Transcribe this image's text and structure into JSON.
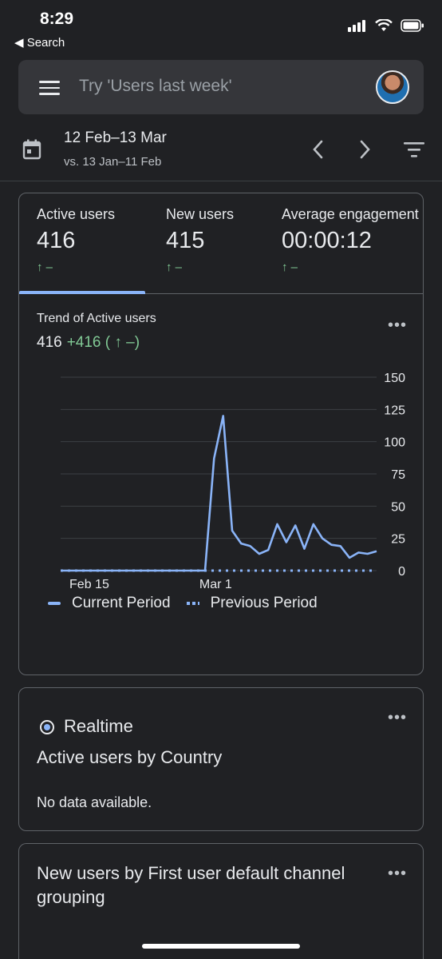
{
  "status_bar": {
    "time": "8:29",
    "back_label": "◀ Search"
  },
  "header": {
    "search_placeholder": "Try 'Users last week'",
    "date_range": "12 Feb–13 Mar",
    "compare_range": "vs. 13 Jan–11 Feb"
  },
  "metrics": [
    {
      "label": "Active users",
      "value": "416",
      "delta": "↑ –"
    },
    {
      "label": "New users",
      "value": "415",
      "delta": "↑ –"
    },
    {
      "label": "Average engagement time",
      "value": "00:00:12",
      "delta": "↑ –"
    }
  ],
  "trend": {
    "title": "Trend of Active users",
    "value": "416",
    "change": "+416 ( ↑ –)",
    "legend_current": "Current Period",
    "legend_previous": "Previous Period"
  },
  "chart_data": {
    "type": "line",
    "x_tick_labels": [
      "Feb 15",
      "Mar 1"
    ],
    "y_tick_labels": [
      "150",
      "125",
      "100",
      "75",
      "50",
      "25",
      "0"
    ],
    "ylim": [
      0,
      150
    ],
    "grid": true,
    "legend_position": "bottom-left",
    "series": [
      {
        "name": "Current Period",
        "style": "solid",
        "values": [
          0,
          0,
          0,
          0,
          0,
          0,
          0,
          0,
          0,
          0,
          0,
          0,
          0,
          0,
          0,
          0,
          0,
          87,
          120,
          31,
          21,
          19,
          13,
          16,
          36,
          22,
          35,
          17,
          36,
          25,
          20,
          19,
          10,
          14,
          13,
          15
        ]
      },
      {
        "name": "Previous Period",
        "style": "dotted",
        "values": [
          0,
          0,
          0,
          0,
          0,
          0,
          0,
          0,
          0,
          0,
          0,
          0,
          0,
          0,
          0,
          0,
          0,
          0,
          0,
          0,
          0,
          0,
          0,
          0,
          0,
          0,
          0,
          0,
          0,
          0,
          0,
          0,
          0,
          0,
          0,
          0
        ]
      }
    ],
    "colors": {
      "line": "#8ab4f8",
      "grid": "#3c4043",
      "axis_text": "#e8eaed"
    }
  },
  "realtime": {
    "label": "Realtime",
    "title": "Active users by Country",
    "empty_text": "No data available."
  },
  "channel_card": {
    "title": "New users by First user default channel grouping"
  }
}
